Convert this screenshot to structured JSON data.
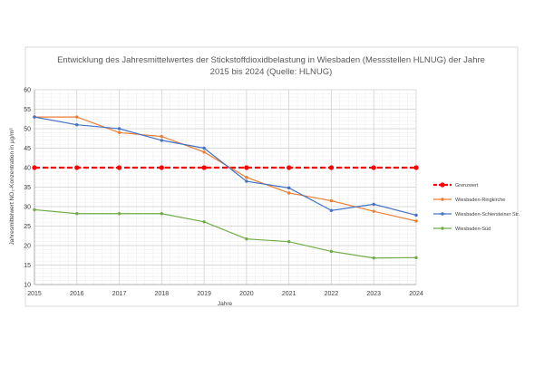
{
  "chart_data": {
    "type": "line",
    "title_line1": "Entwicklung des Jahresmittelwertes der Stickstoffdioxidbelastung in Wiesbaden (Messstellen HLNUG) der Jahre",
    "title_line2": "2015 bis 2024 (Quelle: HLNUG)",
    "xlabel": "Jahre",
    "ylabel": "Jahresmittelwert NO₂-Konzentration in µg/m³",
    "x": [
      2015,
      2016,
      2017,
      2018,
      2019,
      2020,
      2021,
      2022,
      2023,
      2024
    ],
    "ylim": [
      10,
      60
    ],
    "yticks": [
      10,
      15,
      20,
      25,
      30,
      35,
      40,
      45,
      50,
      55,
      60
    ],
    "grid": true,
    "legend_position": "right",
    "series": [
      {
        "name": "Grenzwert",
        "color": "#ff0000",
        "style": "dashed",
        "values": [
          40,
          40,
          40,
          40,
          40,
          40,
          40,
          40,
          40,
          40
        ]
      },
      {
        "name": "Wiesbaden-Ringkirche",
        "color": "#ed7d31",
        "style": "solid",
        "values": [
          53,
          53,
          49,
          48,
          44,
          37.5,
          33.5,
          31.5,
          28.8,
          26.3
        ]
      },
      {
        "name": "Wiesbaden-Schiersteiner Str.",
        "color": "#4472c4",
        "style": "solid",
        "values": [
          53,
          51,
          50,
          47,
          45,
          36.5,
          34.8,
          29,
          30.6,
          27.8
        ]
      },
      {
        "name": "Wiesbaden-Süd",
        "color": "#70ad47",
        "style": "solid",
        "values": [
          29.2,
          28.2,
          28.2,
          28.2,
          26.1,
          21.7,
          21,
          18.5,
          16.8,
          16.9
        ]
      }
    ]
  }
}
